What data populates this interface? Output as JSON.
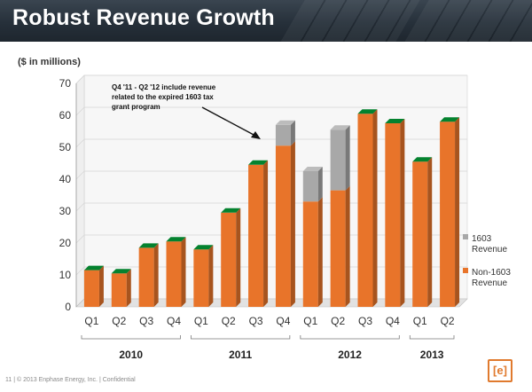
{
  "title": "Robust Revenue Growth",
  "units_label": "($ in millions)",
  "footer": "11  |  © 2013 Enphase Energy, Inc.  |  Confidential",
  "logo_text": "[e]",
  "colors": {
    "orange": "#e8742a",
    "gray": "#a8a8a8"
  },
  "chart_data": {
    "type": "bar",
    "stacked": true,
    "categories": [
      "Q1",
      "Q2",
      "Q3",
      "Q4",
      "Q1",
      "Q2",
      "Q3",
      "Q4",
      "Q1",
      "Q2",
      "Q3",
      "Q4",
      "Q1",
      "Q2"
    ],
    "years": [
      {
        "label": "2010",
        "span": 4
      },
      {
        "label": "2011",
        "span": 4
      },
      {
        "label": "2012",
        "span": 4
      },
      {
        "label": "2013",
        "span": 2
      }
    ],
    "series": [
      {
        "name": "Non-1603 Revenue",
        "color": "#e8742a",
        "values": [
          11.5,
          10.5,
          18.5,
          20.5,
          18,
          29.5,
          44.5,
          50.5,
          33,
          36.5,
          60.5,
          57.5,
          45.5,
          58
        ]
      },
      {
        "name": "1603 Revenue",
        "color": "#a8a8a8",
        "values": [
          0,
          0,
          0,
          0,
          0,
          0,
          0,
          6.5,
          9.5,
          19,
          0,
          0,
          0,
          0
        ]
      }
    ],
    "ylim": [
      0,
      70
    ],
    "yticks": [
      0,
      10,
      20,
      30,
      40,
      50,
      60,
      70
    ],
    "annotation": {
      "lines": [
        "Q4 '11 - Q2 '12 include revenue",
        "related to the expired 1603 tax",
        "grant  program"
      ]
    },
    "legend": [
      {
        "lines": [
          "1603",
          "Revenue"
        ],
        "color": "#a8a8a8"
      },
      {
        "lines": [
          "Non-1603",
          "Revenue"
        ],
        "color": "#e8742a"
      }
    ]
  }
}
